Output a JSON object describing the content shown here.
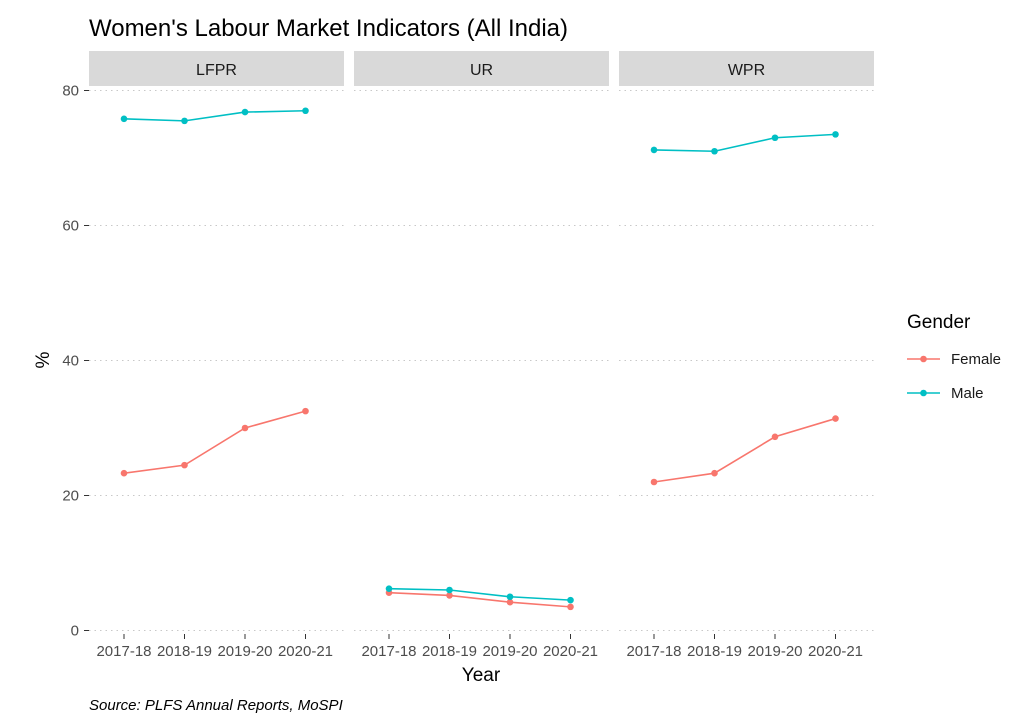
{
  "chart_data": {
    "type": "line",
    "title": "Women's Labour Market Indicators (All India)",
    "xlabel": "Year",
    "ylabel": "%",
    "caption": "Source: PLFS Annual Reports, MoSPI",
    "legend_title": "Gender",
    "legend_position": "right",
    "grid": "horizontal dotted",
    "ylim": [
      0,
      85
    ],
    "yticks": [
      0,
      20,
      40,
      60,
      80
    ],
    "categories": [
      "2017-18",
      "2018-19",
      "2019-20",
      "2020-21"
    ],
    "colors": {
      "Female": "#F8766D",
      "Male": "#00BFC4"
    },
    "panels": [
      {
        "label": "LFPR",
        "series": [
          {
            "name": "Female",
            "values": [
              23.3,
              24.5,
              30.0,
              32.5
            ]
          },
          {
            "name": "Male",
            "values": [
              75.8,
              75.5,
              76.8,
              77.0
            ]
          }
        ]
      },
      {
        "label": "UR",
        "series": [
          {
            "name": "Female",
            "values": [
              5.6,
              5.2,
              4.2,
              3.5
            ]
          },
          {
            "name": "Male",
            "values": [
              6.2,
              6.0,
              5.0,
              4.5
            ]
          }
        ]
      },
      {
        "label": "WPR",
        "series": [
          {
            "name": "Female",
            "values": [
              22.0,
              23.3,
              28.7,
              31.4
            ]
          },
          {
            "name": "Male",
            "values": [
              71.2,
              71.0,
              73.0,
              73.5
            ]
          }
        ]
      }
    ]
  }
}
